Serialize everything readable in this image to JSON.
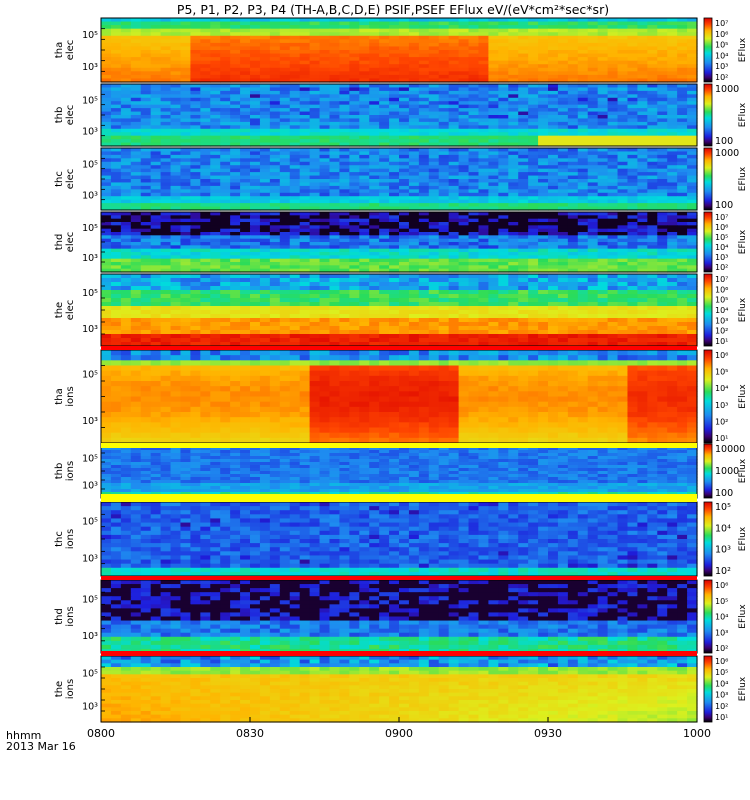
{
  "chart_data": {
    "type": "heatmap",
    "title": "P5, P1, P2, P3, P4 (TH-A,B,C,D,E) PSIF,PSEF EFlux eV/(eV*cm²*sec*sr)",
    "x_ticks": [
      "0800",
      "0830",
      "0900",
      "0930",
      "1000"
    ],
    "x_range": [
      "08:00",
      "10:00"
    ],
    "date_label": {
      "line1": "hhmm",
      "line2": "2013 Mar 16"
    },
    "colorbar_label": "EFlux",
    "panels": [
      {
        "label": [
          "tha",
          "elec"
        ],
        "y_ticks": [
          "10⁵",
          "10³"
        ],
        "cbar_ticks": [
          "10⁷",
          "10⁶",
          "10⁵",
          "10⁴",
          "10³",
          "10²"
        ],
        "pattern": "tha_elec"
      },
      {
        "label": [
          "thb",
          "elec"
        ],
        "y_ticks": [
          "10⁵",
          "10³"
        ],
        "cbar_ticks": [
          "1000",
          "100"
        ],
        "pattern": "thb_elec"
      },
      {
        "label": [
          "thc",
          "elec"
        ],
        "y_ticks": [
          "10⁵",
          "10³"
        ],
        "cbar_ticks": [
          "1000",
          "100"
        ],
        "pattern": "thc_elec"
      },
      {
        "label": [
          "thd",
          "elec"
        ],
        "y_ticks": [
          "10⁵",
          "10³"
        ],
        "cbar_ticks": [
          "10⁷",
          "10⁶",
          "10⁵",
          "10⁴",
          "10³",
          "10²"
        ],
        "pattern": "thd_elec"
      },
      {
        "label": [
          "the",
          "elec"
        ],
        "y_ticks": [
          "10⁵",
          "10³"
        ],
        "cbar_ticks": [
          "10⁷",
          "10⁶",
          "10⁵",
          "10⁴",
          "10³",
          "10²",
          "10¹"
        ],
        "pattern": "the_elec"
      },
      {
        "label": [
          "tha",
          "ions"
        ],
        "y_ticks": [
          "10⁵",
          "10³"
        ],
        "cbar_ticks": [
          "10⁶",
          "10⁵",
          "10⁴",
          "10³",
          "10²",
          "10¹"
        ],
        "pattern": "tha_ions"
      },
      {
        "label": [
          "thb",
          "ions"
        ],
        "y_ticks": [
          "10⁵",
          "10³"
        ],
        "cbar_ticks": [
          "10000",
          "1000",
          "100"
        ],
        "pattern": "thb_ions"
      },
      {
        "label": [
          "thc",
          "ions"
        ],
        "y_ticks": [
          "10⁵",
          "10³"
        ],
        "cbar_ticks": [
          "10⁵",
          "10⁴",
          "10³",
          "10²"
        ],
        "pattern": "thc_ions"
      },
      {
        "label": [
          "thd",
          "ions"
        ],
        "y_ticks": [
          "10⁵",
          "10³"
        ],
        "cbar_ticks": [
          "10⁶",
          "10⁵",
          "10⁴",
          "10³",
          "10²"
        ],
        "pattern": "thd_ions"
      },
      {
        "label": [
          "the",
          "ions"
        ],
        "y_ticks": [
          "10⁵",
          "10³"
        ],
        "cbar_ticks": [
          "10⁶",
          "10⁵",
          "10⁴",
          "10³",
          "10²",
          "10¹"
        ],
        "pattern": "the_ions"
      }
    ]
  }
}
